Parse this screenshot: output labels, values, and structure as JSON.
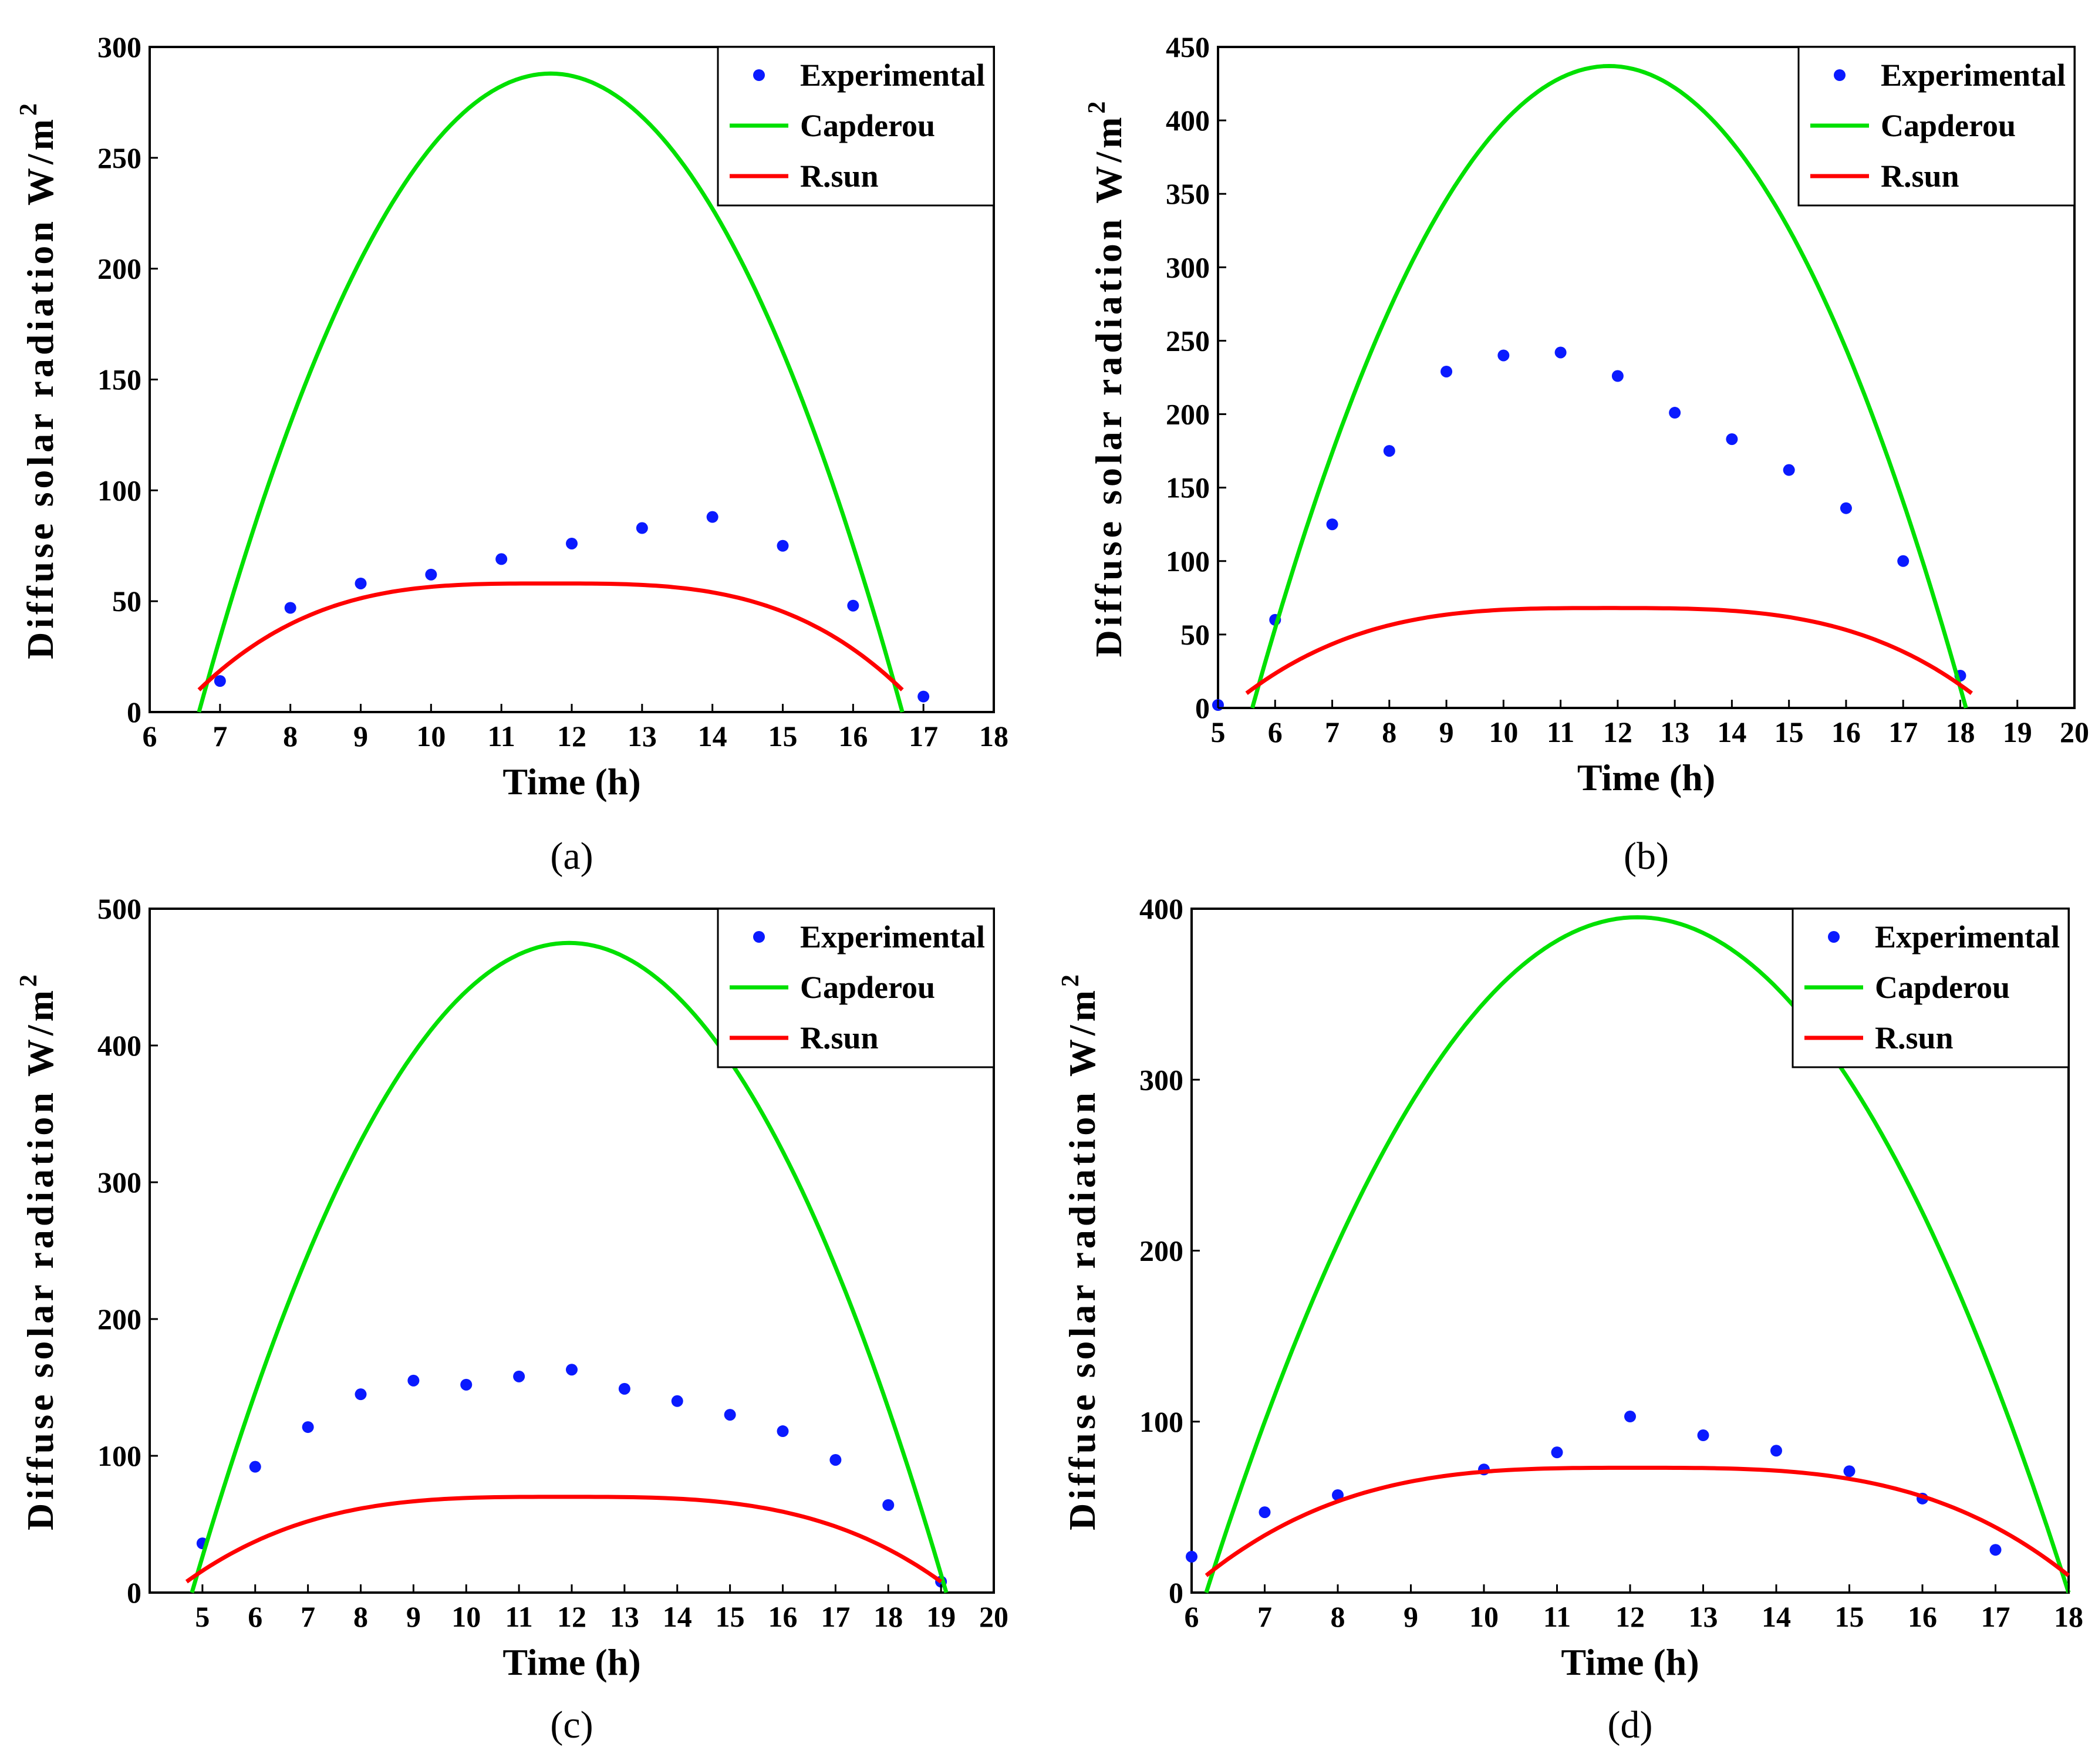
{
  "figure": {
    "colors": {
      "experimental": "#0a1aff",
      "capderou": "#00e000",
      "rsun": "#ff0000",
      "grid": "#000000",
      "axis": "#000000",
      "background": "#ffffff"
    }
  },
  "chart_data": [
    {
      "type": "line",
      "caption": "(a)",
      "title": "",
      "xlabel": "Time (h)",
      "ylabel": "Diffuse solar radiation W/m",
      "ylabel_sup": "2",
      "xlim": [
        6,
        18
      ],
      "ylim": [
        0,
        300
      ],
      "xticks": [
        6,
        7,
        8,
        9,
        10,
        11,
        12,
        13,
        14,
        15,
        16,
        17,
        18
      ],
      "yticks": [
        0,
        50,
        100,
        150,
        200,
        250,
        300
      ],
      "legend": [
        "Experimental",
        "Capderou",
        "R.sun"
      ],
      "legend_position": "top-right",
      "series": [
        {
          "name": "Experimental",
          "style": "markers",
          "x": [
            7,
            8,
            9,
            10,
            11,
            12,
            13,
            14,
            15,
            16,
            17
          ],
          "y": [
            14,
            47,
            58,
            62,
            69,
            76,
            83,
            88,
            75,
            48,
            7
          ]
        },
        {
          "name": "Capderou",
          "style": "line",
          "shape": "parabola",
          "x_start": 6.7,
          "x_end": 16.7,
          "peak": 288
        },
        {
          "name": "R.sun",
          "style": "line",
          "shape": "dome",
          "x_start": 6.7,
          "x_end": 16.7,
          "peak": 58,
          "end_value": 10
        }
      ]
    },
    {
      "type": "line",
      "caption": "(b)",
      "title": "",
      "xlabel": "Time (h)",
      "ylabel": "Diffuse solar radiation W/m",
      "ylabel_sup": "2",
      "xlim": [
        5,
        20
      ],
      "ylim": [
        0,
        450
      ],
      "xticks": [
        5,
        6,
        7,
        8,
        9,
        10,
        11,
        12,
        13,
        14,
        15,
        16,
        17,
        18,
        19,
        20
      ],
      "yticks": [
        0,
        50,
        100,
        150,
        200,
        250,
        300,
        350,
        400,
        450
      ],
      "legend": [
        "Experimental",
        "Capderou",
        "R.sun"
      ],
      "legend_position": "top-right",
      "series": [
        {
          "name": "Experimental",
          "style": "markers",
          "x": [
            5,
            6,
            7,
            8,
            9,
            10,
            11,
            12,
            13,
            14,
            15,
            16,
            17,
            18
          ],
          "y": [
            2,
            60,
            125,
            175,
            229,
            240,
            242,
            226,
            201,
            183,
            162,
            136,
            100,
            22
          ]
        },
        {
          "name": "Capderou",
          "style": "line",
          "shape": "parabola",
          "x_start": 5.6,
          "x_end": 18.1,
          "peak": 437
        },
        {
          "name": "R.sun",
          "style": "line",
          "shape": "dome",
          "x_start": 5.5,
          "x_end": 18.2,
          "peak": 68,
          "end_value": 10
        }
      ]
    },
    {
      "type": "line",
      "caption": "(c)",
      "title": "",
      "xlabel": "Time (h)",
      "ylabel": "Diffuse solar radiation W/m",
      "ylabel_sup": "2",
      "xlim": [
        4,
        20
      ],
      "ylim": [
        0,
        500
      ],
      "xticks": [
        5,
        6,
        7,
        8,
        9,
        10,
        11,
        12,
        13,
        14,
        15,
        16,
        17,
        18,
        19,
        20
      ],
      "yticks": [
        0,
        100,
        200,
        300,
        400,
        500
      ],
      "legend": [
        "Experimental",
        "Capderou",
        "R.sun"
      ],
      "legend_position": "top-right",
      "series": [
        {
          "name": "Experimental",
          "style": "markers",
          "x": [
            5,
            6,
            7,
            8,
            9,
            10,
            11,
            12,
            13,
            14,
            15,
            16,
            17,
            18,
            19
          ],
          "y": [
            36,
            92,
            121,
            145,
            155,
            152,
            158,
            163,
            149,
            140,
            130,
            118,
            97,
            64,
            8
          ]
        },
        {
          "name": "Capderou",
          "style": "line",
          "shape": "parabola",
          "x_start": 4.8,
          "x_end": 19.1,
          "peak": 475
        },
        {
          "name": "R.sun",
          "style": "line",
          "shape": "dome",
          "x_start": 4.7,
          "x_end": 19.0,
          "peak": 70,
          "end_value": 8
        }
      ]
    },
    {
      "type": "line",
      "caption": "(d)",
      "title": "",
      "xlabel": "Time (h)",
      "ylabel": "Diffuse solar radiation W/m",
      "ylabel_sup": "2",
      "xlim": [
        6,
        18
      ],
      "ylim": [
        0,
        400
      ],
      "xticks": [
        6,
        7,
        8,
        9,
        10,
        11,
        12,
        13,
        14,
        15,
        16,
        17,
        18
      ],
      "yticks": [
        0,
        100,
        200,
        300,
        400
      ],
      "legend": [
        "Experimental",
        "Capderou",
        "R.sun"
      ],
      "legend_position": "top-right",
      "series": [
        {
          "name": "Experimental",
          "style": "markers",
          "x": [
            6,
            7,
            8,
            10,
            11,
            12,
            13,
            14,
            15,
            16,
            17
          ],
          "y": [
            21,
            47,
            57,
            72,
            82,
            103,
            92,
            83,
            71,
            55,
            25
          ]
        },
        {
          "name": "Capderou",
          "style": "line",
          "shape": "parabola",
          "x_start": 6.2,
          "x_end": 18.0,
          "peak": 395
        },
        {
          "name": "R.sun",
          "style": "line",
          "shape": "dome",
          "x_start": 6.2,
          "x_end": 18.0,
          "peak": 73,
          "end_value": 10
        }
      ]
    }
  ]
}
